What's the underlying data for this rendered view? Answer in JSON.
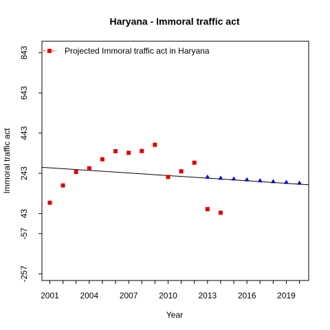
{
  "chart_data": {
    "type": "scatter",
    "title": "Haryana  -  Immoral traffic act",
    "xlabel": "Year",
    "ylabel": "Immoral traffic act",
    "xlim": [
      2000.4,
      2020.7
    ],
    "ylim": [
      -290,
      900
    ],
    "x_ticks": [
      2001,
      2004,
      2007,
      2010,
      2013,
      2016,
      2019
    ],
    "y_ticks": [
      -257,
      -57,
      43,
      243,
      443,
      643,
      843
    ],
    "legend": {
      "position": "top-left",
      "label": "Projected  Immoral traffic act  in  Haryana"
    },
    "series": [
      {
        "name": "Projected  Immoral traffic act  in  Haryana",
        "marker": "square",
        "color": "#dd0000",
        "points": [
          {
            "x": 2001,
            "y": 97
          },
          {
            "x": 2002,
            "y": 183
          },
          {
            "x": 2003,
            "y": 250
          },
          {
            "x": 2004,
            "y": 268
          },
          {
            "x": 2005,
            "y": 313
          },
          {
            "x": 2006,
            "y": 353
          },
          {
            "x": 2007,
            "y": 345
          },
          {
            "x": 2008,
            "y": 354
          },
          {
            "x": 2009,
            "y": 385
          },
          {
            "x": 2010,
            "y": 225
          },
          {
            "x": 2011,
            "y": 253
          },
          {
            "x": 2012,
            "y": 296
          },
          {
            "x": 2013,
            "y": 65
          },
          {
            "x": 2014,
            "y": 47
          }
        ]
      },
      {
        "marker": "triangle",
        "color": "#0000cc",
        "points": [
          {
            "x": 2013,
            "y": 225
          },
          {
            "x": 2014,
            "y": 220
          },
          {
            "x": 2015,
            "y": 216
          },
          {
            "x": 2016,
            "y": 212
          },
          {
            "x": 2017,
            "y": 207
          },
          {
            "x": 2018,
            "y": 203
          },
          {
            "x": 2019,
            "y": 199
          },
          {
            "x": 2020,
            "y": 195
          }
        ]
      }
    ],
    "trend_line": {
      "color": "#000000",
      "points": [
        {
          "x": 2000.4,
          "y": 273
        },
        {
          "x": 2020.7,
          "y": 186
        }
      ]
    }
  }
}
